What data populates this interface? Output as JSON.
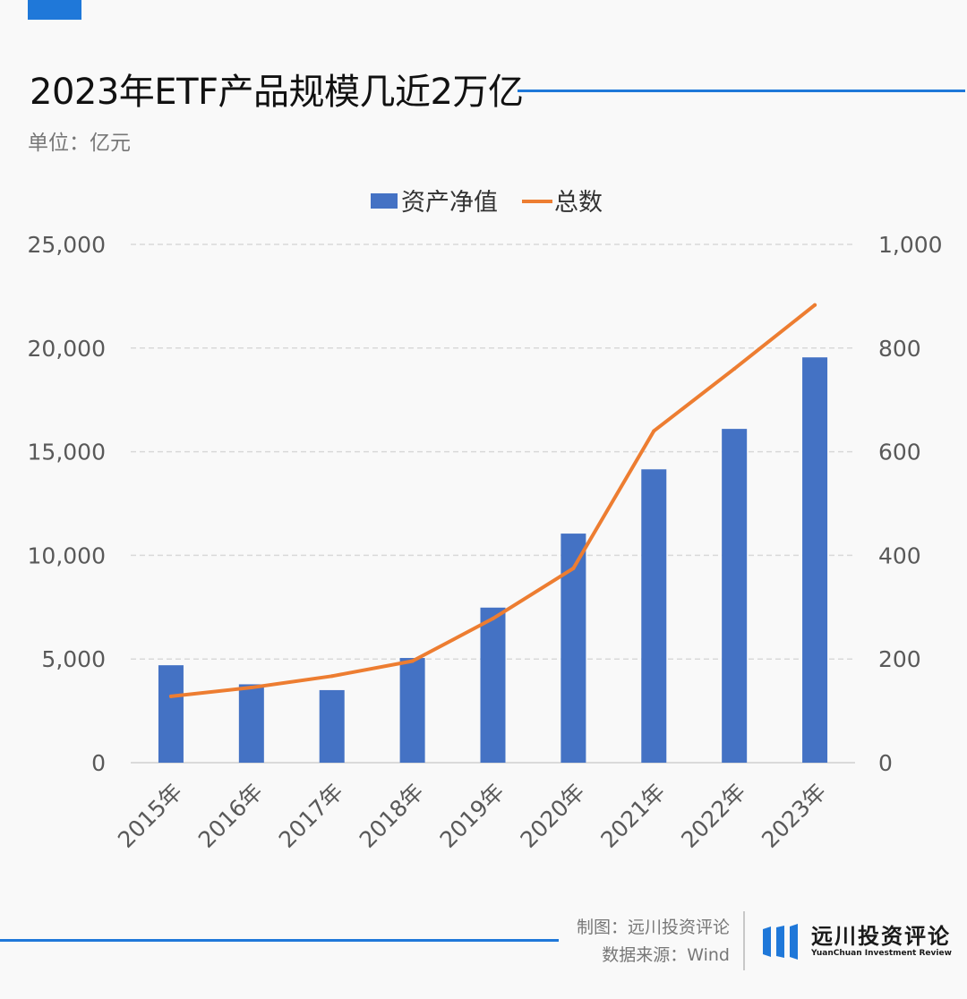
{
  "page": {
    "title": "2023年ETF产品规模几近2万亿",
    "unit": "单位：亿元",
    "credit_line1": "制图：远川投资评论",
    "credit_line2": "数据来源：Wind",
    "logo_cn": "远川投资评论",
    "logo_en": "YuanChuan Investment Review"
  },
  "colors": {
    "accent": "#1f78d9",
    "bar": "#4472c4",
    "line": "#ed7d31",
    "grid": "#d9d9d9",
    "axis_text": "#595959"
  },
  "chart_data": {
    "type": "bar",
    "title": "2023年ETF产品规模几近2万亿",
    "ylabel": "亿元",
    "categories": [
      "2015年",
      "2016年",
      "2017年",
      "2018年",
      "2019年",
      "2020年",
      "2021年",
      "2022年",
      "2023年"
    ],
    "series": [
      {
        "name": "资产净值",
        "type": "bar",
        "axis": "left",
        "values": [
          4700,
          3780,
          3500,
          5050,
          7480,
          11050,
          14150,
          16100,
          19550
        ]
      },
      {
        "name": "总数",
        "type": "line",
        "axis": "right",
        "values": [
          128,
          145,
          167,
          196,
          278,
          375,
          640,
          760,
          883
        ]
      }
    ],
    "ylim_left": [
      0,
      25000
    ],
    "yticks_left": [
      "0",
      "5,000",
      "10,000",
      "15,000",
      "20,000",
      "25,000"
    ],
    "ylim_right": [
      0,
      1000
    ],
    "yticks_right": [
      "0",
      "200",
      "400",
      "600",
      "800",
      "1,000"
    ],
    "legend_position": "top-center",
    "grid": true
  }
}
